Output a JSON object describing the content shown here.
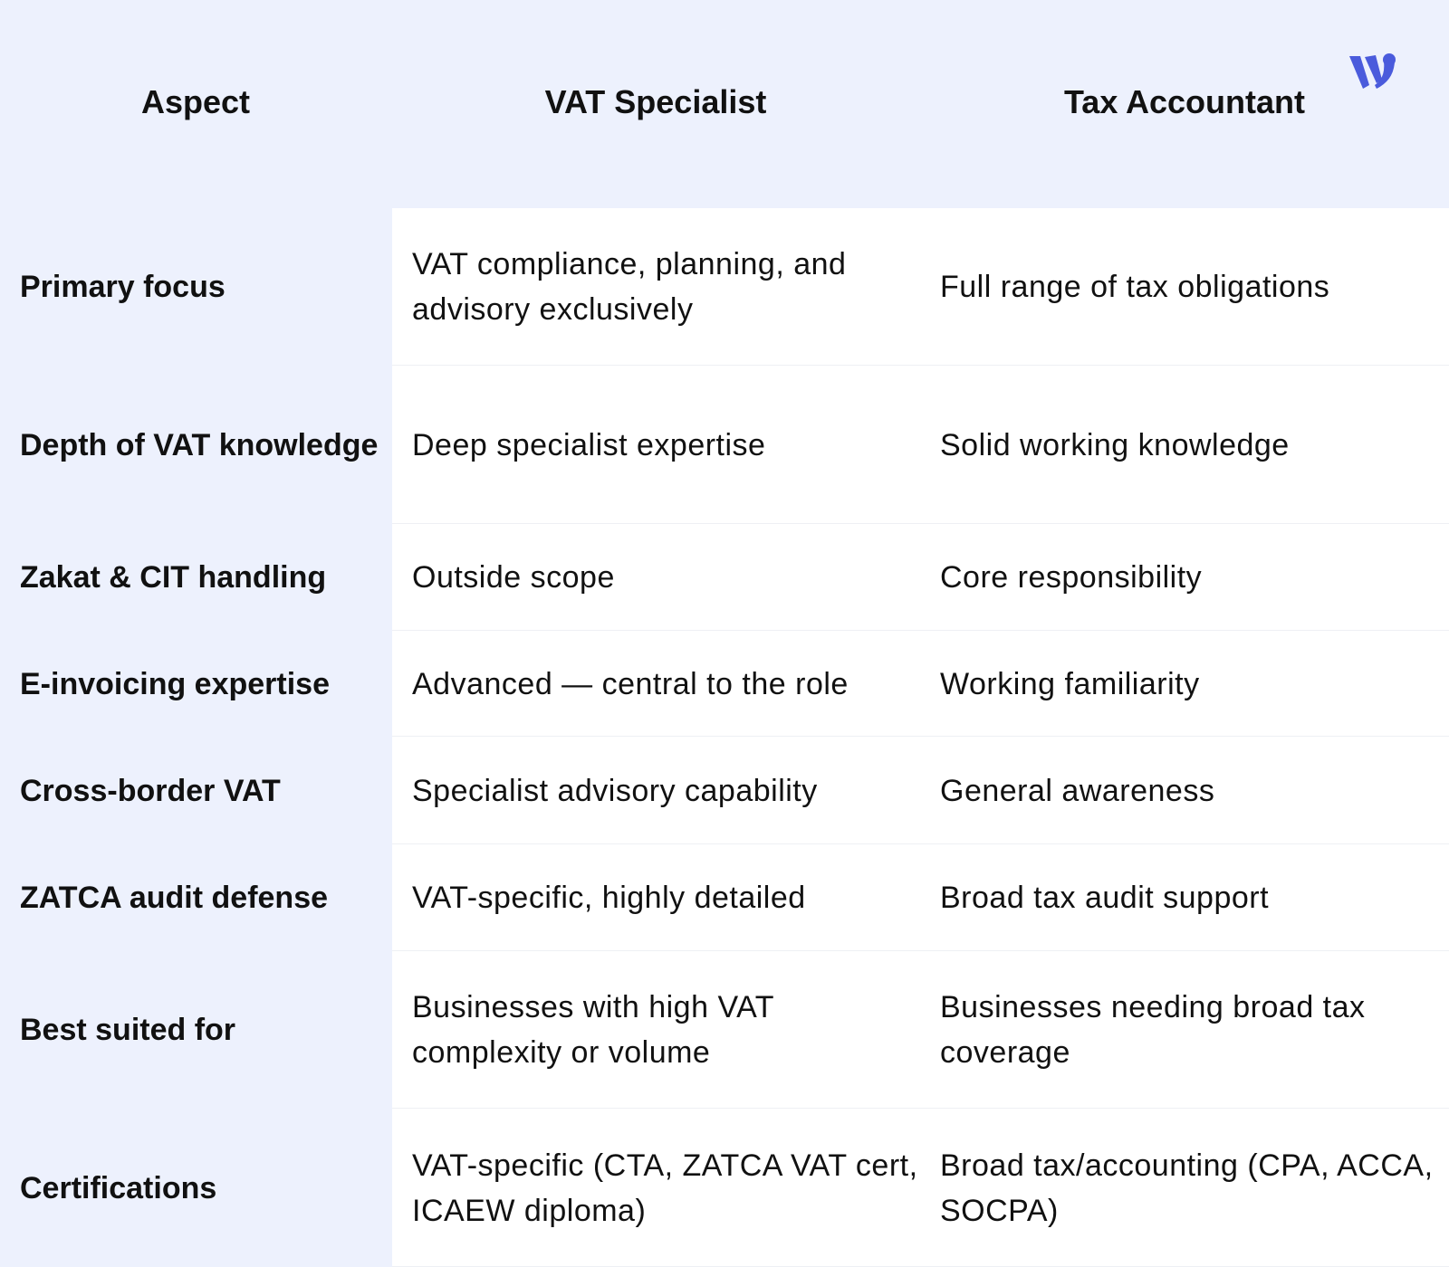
{
  "header": {
    "aspect": "Aspect",
    "col1": "VAT Specialist",
    "col2": "Tax Accountant"
  },
  "brand": {
    "logo": "W",
    "color": "#4a5bdc"
  },
  "rows": [
    {
      "aspect": "Primary focus",
      "vat": "VAT compliance, planning, and advisory exclusively",
      "tax": "Full range of tax obligations"
    },
    {
      "aspect": "Depth of VAT knowledge",
      "vat": "Deep specialist expertise",
      "tax": "Solid working knowledge"
    },
    {
      "aspect": "Zakat & CIT handling",
      "vat": "Outside scope",
      "tax": "Core responsibility"
    },
    {
      "aspect": "E-invoicing expertise",
      "vat": "Advanced — central to the role",
      "tax": "Working familiarity"
    },
    {
      "aspect": "Cross-border VAT",
      "vat": "Specialist advisory capability",
      "tax": "General awareness"
    },
    {
      "aspect": "ZATCA audit defense",
      "vat": "VAT-specific, highly detailed",
      "tax": "Broad tax audit support"
    },
    {
      "aspect": "Best suited for",
      "vat": "Businesses with high VAT complexity or volume",
      "tax": "Businesses needing broad tax coverage"
    },
    {
      "aspect": "Certifications",
      "vat": "VAT-specific (CTA, ZATCA VAT cert, ICAEW diploma)",
      "tax": "Broad tax/accounting (CPA, ACCA, SOCPA)"
    }
  ]
}
